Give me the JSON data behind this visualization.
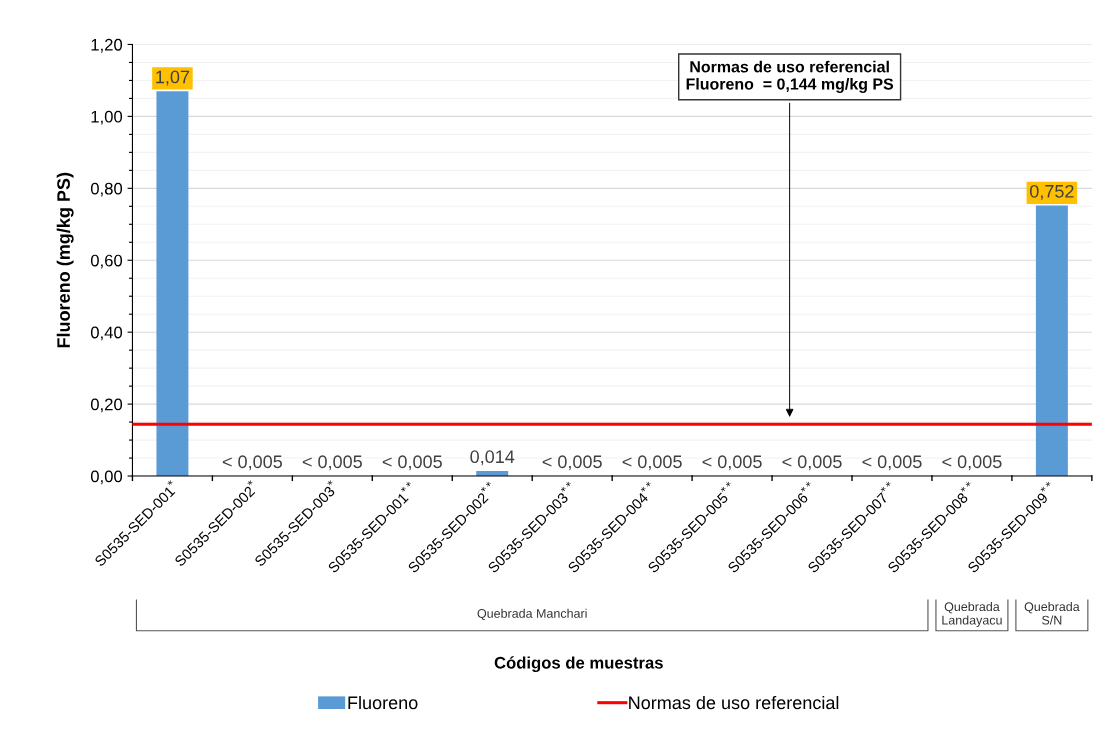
{
  "chart_data": {
    "type": "bar",
    "xlabel": "Códigos de muestras",
    "ylabel": "Fluoreno (mg/kg PS)",
    "categories": [
      "S0535-SED-001$^{*}$",
      "S0535-SED-002$^{*}$",
      "S0535-SED-003$^{*}$",
      "S0535-SED-001$^{**}$",
      "S0535-SED-002$^{**}$",
      "S0535-SED-003$^{**}$",
      "S0535-SED-004$^{**}$",
      "S0535-SED-005$^{**}$",
      "S0535-SED-006$^{**}$",
      "S0535-SED-007$^{**}$",
      "S0535-SED-008$^{**}$",
      "S0535-SED-009$^{**}$"
    ],
    "series": [
      {
        "name": "Fluoreno",
        "color": "#5b9bd5",
        "values": [
          1.07,
          null,
          null,
          null,
          0.014,
          null,
          null,
          null,
          null,
          null,
          null,
          0.752
        ],
        "value_labels": [
          "1,07",
          "< 0,005",
          "< 0,005",
          "< 0,005",
          "0,014",
          "< 0,005",
          "< 0,005",
          "< 0,005",
          "< 0,005",
          "< 0,005",
          "< 0,005",
          "0,752"
        ]
      }
    ],
    "ylim": [
      0,
      1.2
    ],
    "yticks": [
      {
        "value": 0,
        "label": "0,00"
      },
      {
        "value": 0.05,
        "label": null
      },
      {
        "value": 0.1,
        "label": null
      },
      {
        "value": 0.15,
        "label": null
      },
      {
        "value": 0.2,
        "label": "0,20"
      },
      {
        "value": 0.25,
        "label": null
      },
      {
        "value": 0.3,
        "label": null
      },
      {
        "value": 0.35,
        "label": null
      },
      {
        "value": 0.4,
        "label": "0,40"
      },
      {
        "value": 0.45,
        "label": null
      },
      {
        "value": 0.5,
        "label": null
      },
      {
        "value": 0.55,
        "label": null
      },
      {
        "value": 0.6,
        "label": "0,60"
      },
      {
        "value": 0.65,
        "label": null
      },
      {
        "value": 0.7,
        "label": null
      },
      {
        "value": 0.75,
        "label": null
      },
      {
        "value": 0.8,
        "label": "0,80"
      },
      {
        "value": 0.85,
        "label": null
      },
      {
        "value": 0.9,
        "label": null
      },
      {
        "value": 0.95,
        "label": null
      },
      {
        "value": 1.0,
        "label": "1,00"
      },
      {
        "value": 1.05,
        "label": null
      },
      {
        "value": 1.1,
        "label": null
      },
      {
        "value": 1.15,
        "label": null
      },
      {
        "value": 1.2,
        "label": "1,20"
      }
    ],
    "ref_lines": [
      {
        "axis": "y",
        "value": 0.144,
        "label": "Normas de uso referencial",
        "color": "#ff0000",
        "line_style": "solid"
      }
    ],
    "annotations": [
      "Normas de uso referencial\nFluoreno  = 0,144 mg/kg PS",
      "Quebrada Manchari",
      "Quebrada\nLandayacu",
      "Quebrada\nS/N"
    ],
    "grid": "y",
    "legend": "bottom"
  }
}
